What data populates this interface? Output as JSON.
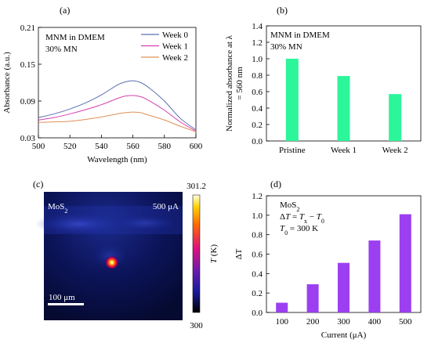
{
  "figure": {
    "panels": {
      "a": {
        "label": "(a)",
        "annotation": [
          "MNM in DMEM",
          "30% MN"
        ]
      },
      "b": {
        "label": "(b)",
        "annotation": [
          "MNM in DMEM",
          "30% MN"
        ]
      },
      "c": {
        "label": "(c)",
        "sample": "MoS₂",
        "current": "500 μA",
        "scalebar": "100 μm",
        "colorbar": {
          "max": "301.2",
          "min": "300",
          "label_var": "T",
          "label_unit": " (K)"
        },
        "hotspot_relative_x": 0.49,
        "hotspot_relative_y": 0.55
      },
      "d": {
        "label": "(d)",
        "annotation": [
          "MoS₂",
          "ΔT = Tₓ − T₀",
          "T₀ = 300 K"
        ]
      }
    }
  },
  "chart_data": [
    {
      "id": "a",
      "type": "line",
      "xlabel": "Wavelength (nm)",
      "ylabel": "Absorbance (a.u.)",
      "xlim": [
        500,
        600
      ],
      "ylim": [
        0.03,
        0.21
      ],
      "xticks": [
        500,
        520,
        540,
        560,
        580,
        600
      ],
      "yticks": [
        0.03,
        0.09,
        0.15,
        0.21
      ],
      "ytick_labels": [
        "0.03",
        "0.09",
        "0.15",
        "0.21"
      ],
      "legend": "top-right",
      "series": [
        {
          "name": "Week 0",
          "color": "#5b6fb0",
          "x": [
            500,
            510,
            520,
            530,
            540,
            550,
            555,
            560,
            565,
            570,
            580,
            590,
            600
          ],
          "y": [
            0.063,
            0.069,
            0.077,
            0.087,
            0.1,
            0.116,
            0.121,
            0.123,
            0.12,
            0.112,
            0.09,
            0.062,
            0.043
          ]
        },
        {
          "name": "Week 1",
          "color": "#d63fae",
          "x": [
            500,
            510,
            520,
            530,
            540,
            550,
            555,
            560,
            565,
            570,
            580,
            590,
            600
          ],
          "y": [
            0.059,
            0.063,
            0.069,
            0.076,
            0.084,
            0.094,
            0.098,
            0.099,
            0.097,
            0.091,
            0.075,
            0.056,
            0.041
          ]
        },
        {
          "name": "Week 2",
          "color": "#e09058",
          "x": [
            500,
            510,
            520,
            530,
            540,
            550,
            555,
            560,
            565,
            570,
            580,
            590,
            600
          ],
          "y": [
            0.055,
            0.056,
            0.057,
            0.06,
            0.064,
            0.069,
            0.071,
            0.072,
            0.071,
            0.067,
            0.059,
            0.049,
            0.04
          ]
        }
      ]
    },
    {
      "id": "b",
      "type": "bar",
      "categories": [
        "Pristine",
        "Week 1",
        "Week 2"
      ],
      "values": [
        1.0,
        0.79,
        0.57
      ],
      "color": "#2df59a",
      "ylabel_lines": [
        "Normalized absorbance at λ",
        "= 560 nm"
      ],
      "ylim": [
        0,
        1.4
      ],
      "yticks": [
        0,
        0.2,
        0.4,
        0.6,
        0.8,
        1.0,
        1.2,
        1.4
      ],
      "ytick_labels": [
        "0.0",
        "0.2",
        "0.4",
        "0.6",
        "0.8",
        "1.0",
        "1.2",
        "1.4"
      ]
    },
    {
      "id": "d",
      "type": "bar",
      "categories": [
        "100",
        "200",
        "300",
        "400",
        "500"
      ],
      "values": [
        0.1,
        0.29,
        0.51,
        0.74,
        1.01
      ],
      "color": "#9b3ff0",
      "xlabel": "Current (μA)",
      "ylabel": "ΔT",
      "ylim": [
        0,
        1.2
      ],
      "yticks": [
        0,
        0.2,
        0.4,
        0.6,
        0.8,
        1.0,
        1.2
      ],
      "ytick_labels": [
        "0.0",
        "0.2",
        "0.4",
        "0.6",
        "0.8",
        "1.0",
        "1.2"
      ]
    }
  ]
}
